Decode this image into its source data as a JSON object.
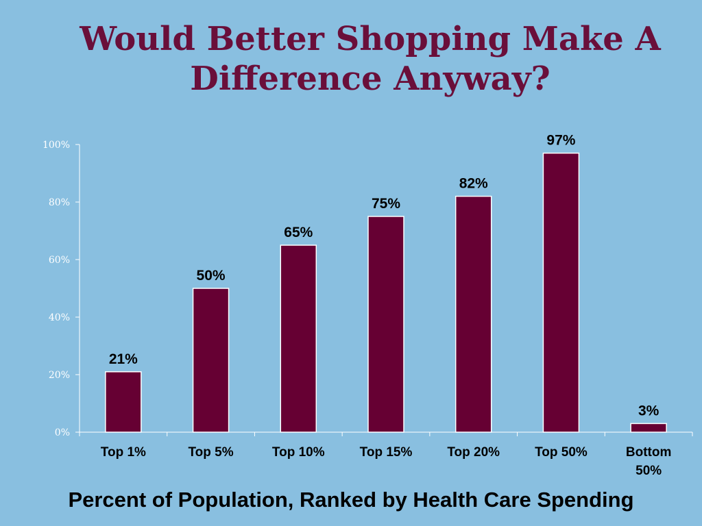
{
  "title_line1": "Would Better Shopping Make A",
  "title_line2": "Difference Anyway?",
  "colors": {
    "background": "#89bfe0",
    "title": "#6a0f3a",
    "bar": "#660033",
    "bar_border": "#ffffff",
    "axis": "#ffffff"
  },
  "chart_data": {
    "type": "bar",
    "categories": [
      "Top 1%",
      "Top 5%",
      "Top 10%",
      "Top 15%",
      "Top 20%",
      "Top 50%",
      "Bottom 50%"
    ],
    "values": [
      21,
      50,
      65,
      75,
      82,
      97,
      3
    ],
    "data_labels": [
      "21%",
      "50%",
      "65%",
      "75%",
      "82%",
      "97%",
      "3%"
    ],
    "xlabel": "Percent of Population, Ranked by Health Care Spending",
    "ylabel": "",
    "ylim": [
      0,
      100
    ],
    "yticks": [
      0,
      20,
      40,
      60,
      80,
      100
    ],
    "ytick_labels": [
      "0%",
      "20%",
      "40%",
      "60%",
      "80%",
      "100%"
    ],
    "grid": false,
    "legend": "none"
  }
}
